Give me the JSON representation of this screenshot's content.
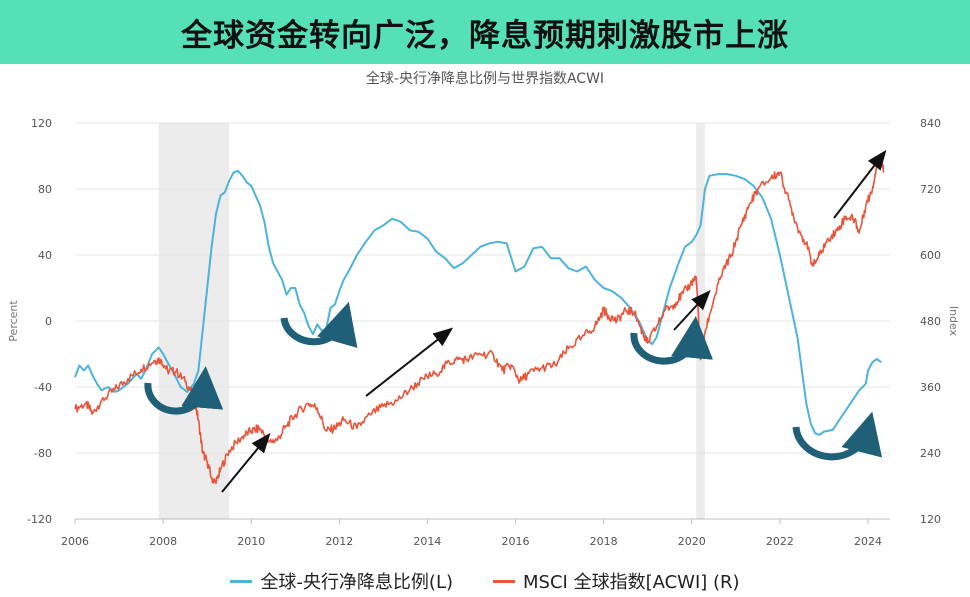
{
  "banner": {
    "title": "全球资金转向广泛，降息预期刺激股市上涨"
  },
  "chart_data": {
    "type": "line",
    "title": "全球-央行净降息比例与世界指数ACWI",
    "xlabel": "",
    "ylabel_left": "Percent",
    "ylabel_right": "Index",
    "xlim": [
      2006,
      2024.5
    ],
    "ylim_left": [
      -120,
      120
    ],
    "ylim_right": [
      120,
      840
    ],
    "x_ticks": [
      "2006",
      "2008",
      "2010",
      "2012",
      "2014",
      "2016",
      "2018",
      "2020",
      "2022",
      "2024"
    ],
    "y_ticks_left": [
      "-120",
      "-80",
      "-40",
      "0",
      "40",
      "80",
      "120"
    ],
    "y_ticks_right": [
      "120",
      "240",
      "360",
      "480",
      "600",
      "720",
      "840"
    ],
    "grid": true,
    "legend_position": "bottom",
    "shaded_periods": [
      [
        2007.9,
        2009.5
      ],
      [
        2020.1,
        2020.3
      ]
    ],
    "series": [
      {
        "name": "全球-央行净降息比例(L)",
        "axis": "left",
        "color": "#4db3dc",
        "points": [
          [
            2006.0,
            -34
          ],
          [
            2006.1,
            -27
          ],
          [
            2006.2,
            -30
          ],
          [
            2006.3,
            -27
          ],
          [
            2006.4,
            -33
          ],
          [
            2006.5,
            -38
          ],
          [
            2006.6,
            -42
          ],
          [
            2006.75,
            -40
          ],
          [
            2006.9,
            -43
          ],
          [
            2007.0,
            -42
          ],
          [
            2007.2,
            -38
          ],
          [
            2007.4,
            -32
          ],
          [
            2007.5,
            -35
          ],
          [
            2007.6,
            -30
          ],
          [
            2007.75,
            -20
          ],
          [
            2007.9,
            -16
          ],
          [
            2008.0,
            -20
          ],
          [
            2008.1,
            -25
          ],
          [
            2008.25,
            -32
          ],
          [
            2008.4,
            -40
          ],
          [
            2008.55,
            -43
          ],
          [
            2008.7,
            -38
          ],
          [
            2008.8,
            -30
          ],
          [
            2008.9,
            -5
          ],
          [
            2009.0,
            20
          ],
          [
            2009.1,
            45
          ],
          [
            2009.2,
            65
          ],
          [
            2009.3,
            76
          ],
          [
            2009.4,
            78
          ],
          [
            2009.5,
            85
          ],
          [
            2009.6,
            90
          ],
          [
            2009.7,
            91
          ],
          [
            2009.8,
            88
          ],
          [
            2009.9,
            84
          ],
          [
            2010.0,
            82
          ],
          [
            2010.1,
            76
          ],
          [
            2010.2,
            70
          ],
          [
            2010.3,
            60
          ],
          [
            2010.4,
            45
          ],
          [
            2010.5,
            35
          ],
          [
            2010.6,
            30
          ],
          [
            2010.7,
            25
          ],
          [
            2010.8,
            16
          ],
          [
            2010.9,
            20
          ],
          [
            2011.0,
            20
          ],
          [
            2011.1,
            10
          ],
          [
            2011.2,
            5
          ],
          [
            2011.3,
            -3
          ],
          [
            2011.4,
            -8
          ],
          [
            2011.5,
            -2
          ],
          [
            2011.6,
            -6
          ],
          [
            2011.7,
            -5
          ],
          [
            2011.8,
            8
          ],
          [
            2011.9,
            10
          ],
          [
            2012.0,
            18
          ],
          [
            2012.1,
            25
          ],
          [
            2012.25,
            32
          ],
          [
            2012.4,
            40
          ],
          [
            2012.6,
            48
          ],
          [
            2012.8,
            55
          ],
          [
            2013.0,
            58
          ],
          [
            2013.2,
            62
          ],
          [
            2013.4,
            60
          ],
          [
            2013.6,
            55
          ],
          [
            2013.8,
            54
          ],
          [
            2014.0,
            50
          ],
          [
            2014.2,
            42
          ],
          [
            2014.4,
            38
          ],
          [
            2014.6,
            32
          ],
          [
            2014.8,
            35
          ],
          [
            2015.0,
            40
          ],
          [
            2015.2,
            45
          ],
          [
            2015.4,
            47
          ],
          [
            2015.6,
            48
          ],
          [
            2015.8,
            47
          ],
          [
            2016.0,
            30
          ],
          [
            2016.2,
            33
          ],
          [
            2016.4,
            44
          ],
          [
            2016.6,
            45
          ],
          [
            2016.8,
            38
          ],
          [
            2017.0,
            38
          ],
          [
            2017.2,
            32
          ],
          [
            2017.4,
            30
          ],
          [
            2017.6,
            33
          ],
          [
            2017.8,
            25
          ],
          [
            2018.0,
            20
          ],
          [
            2018.2,
            18
          ],
          [
            2018.4,
            14
          ],
          [
            2018.6,
            8
          ],
          [
            2018.8,
            0
          ],
          [
            2019.0,
            -12
          ],
          [
            2019.1,
            -14
          ],
          [
            2019.2,
            -10
          ],
          [
            2019.35,
            5
          ],
          [
            2019.5,
            20
          ],
          [
            2019.7,
            35
          ],
          [
            2019.85,
            45
          ],
          [
            2020.0,
            48
          ],
          [
            2020.1,
            52
          ],
          [
            2020.2,
            58
          ],
          [
            2020.3,
            80
          ],
          [
            2020.4,
            88
          ],
          [
            2020.6,
            89
          ],
          [
            2020.8,
            89
          ],
          [
            2021.0,
            88
          ],
          [
            2021.2,
            86
          ],
          [
            2021.4,
            82
          ],
          [
            2021.6,
            75
          ],
          [
            2021.8,
            62
          ],
          [
            2022.0,
            40
          ],
          [
            2022.2,
            15
          ],
          [
            2022.4,
            -10
          ],
          [
            2022.5,
            -30
          ],
          [
            2022.6,
            -50
          ],
          [
            2022.7,
            -62
          ],
          [
            2022.8,
            -68
          ],
          [
            2022.9,
            -69
          ],
          [
            2023.0,
            -67
          ],
          [
            2023.2,
            -66
          ],
          [
            2023.4,
            -58
          ],
          [
            2023.6,
            -50
          ],
          [
            2023.8,
            -42
          ],
          [
            2023.95,
            -38
          ],
          [
            2024.0,
            -30
          ],
          [
            2024.1,
            -25
          ],
          [
            2024.2,
            -23
          ],
          [
            2024.3,
            -25
          ]
        ]
      },
      {
        "name": "MSCI 全球指数[ACWI] (R)",
        "axis": "right",
        "color": "#e8553a",
        "points": [
          [
            2006.0,
            320
          ],
          [
            2006.25,
            330
          ],
          [
            2006.4,
            312
          ],
          [
            2006.6,
            335
          ],
          [
            2006.9,
            355
          ],
          [
            2007.2,
            375
          ],
          [
            2007.5,
            392
          ],
          [
            2007.8,
            408
          ],
          [
            2007.95,
            410
          ],
          [
            2008.1,
            390
          ],
          [
            2008.3,
            388
          ],
          [
            2008.5,
            370
          ],
          [
            2008.7,
            345
          ],
          [
            2008.8,
            300
          ],
          [
            2008.9,
            240
          ],
          [
            2009.0,
            225
          ],
          [
            2009.1,
            195
          ],
          [
            2009.2,
            185
          ],
          [
            2009.3,
            210
          ],
          [
            2009.5,
            245
          ],
          [
            2009.8,
            270
          ],
          [
            2010.0,
            280
          ],
          [
            2010.2,
            285
          ],
          [
            2010.4,
            260
          ],
          [
            2010.6,
            265
          ],
          [
            2010.8,
            290
          ],
          [
            2011.0,
            310
          ],
          [
            2011.3,
            330
          ],
          [
            2011.5,
            322
          ],
          [
            2011.7,
            280
          ],
          [
            2011.9,
            285
          ],
          [
            2012.1,
            300
          ],
          [
            2012.4,
            285
          ],
          [
            2012.7,
            310
          ],
          [
            2013.0,
            325
          ],
          [
            2013.3,
            335
          ],
          [
            2013.6,
            355
          ],
          [
            2013.9,
            375
          ],
          [
            2014.2,
            385
          ],
          [
            2014.5,
            405
          ],
          [
            2014.7,
            410
          ],
          [
            2014.9,
            410
          ],
          [
            2015.2,
            420
          ],
          [
            2015.5,
            418
          ],
          [
            2015.7,
            390
          ],
          [
            2015.9,
            400
          ],
          [
            2016.1,
            370
          ],
          [
            2016.3,
            385
          ],
          [
            2016.6,
            395
          ],
          [
            2016.9,
            400
          ],
          [
            2017.2,
            430
          ],
          [
            2017.5,
            450
          ],
          [
            2017.8,
            470
          ],
          [
            2018.0,
            500
          ],
          [
            2018.1,
            490
          ],
          [
            2018.3,
            480
          ],
          [
            2018.5,
            500
          ],
          [
            2018.7,
            495
          ],
          [
            2018.9,
            455
          ],
          [
            2019.0,
            440
          ],
          [
            2019.2,
            470
          ],
          [
            2019.4,
            500
          ],
          [
            2019.6,
            510
          ],
          [
            2019.8,
            530
          ],
          [
            2020.0,
            550
          ],
          [
            2020.1,
            560
          ],
          [
            2020.15,
            490
          ],
          [
            2020.2,
            410
          ],
          [
            2020.3,
            460
          ],
          [
            2020.5,
            520
          ],
          [
            2020.7,
            570
          ],
          [
            2020.9,
            600
          ],
          [
            2021.1,
            650
          ],
          [
            2021.3,
            690
          ],
          [
            2021.5,
            720
          ],
          [
            2021.8,
            740
          ],
          [
            2022.0,
            750
          ],
          [
            2022.2,
            700
          ],
          [
            2022.4,
            650
          ],
          [
            2022.6,
            620
          ],
          [
            2022.75,
            580
          ],
          [
            2022.9,
            600
          ],
          [
            2023.1,
            630
          ],
          [
            2023.3,
            645
          ],
          [
            2023.5,
            670
          ],
          [
            2023.7,
            665
          ],
          [
            2023.8,
            640
          ],
          [
            2023.95,
            690
          ],
          [
            2024.1,
            720
          ],
          [
            2024.2,
            765
          ],
          [
            2024.3,
            780
          ],
          [
            2024.35,
            750
          ]
        ]
      }
    ]
  }
}
